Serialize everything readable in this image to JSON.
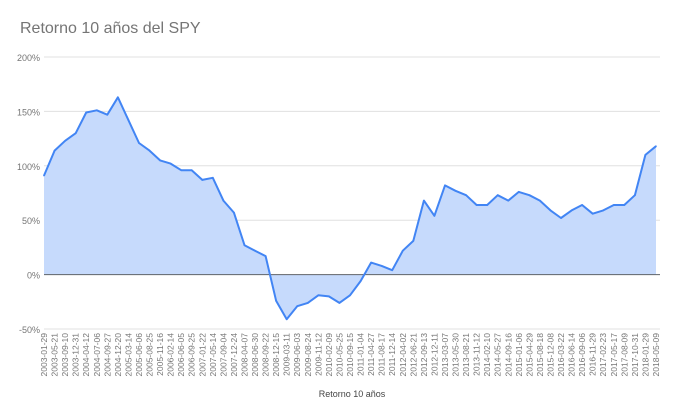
{
  "chart_data": {
    "type": "area",
    "title": "Retorno 10 años del SPY",
    "xlabel": "Retorno 10 años",
    "ylabel": "",
    "ylim": [
      -50,
      200
    ],
    "yticks": [
      200,
      150,
      100,
      50,
      0,
      -50
    ],
    "ytick_labels": [
      "200%",
      "150%",
      "100%",
      "50%",
      "0%",
      "-50%"
    ],
    "grid": true,
    "colors": {
      "line": "#4285f4",
      "fill": "#c6dafc",
      "grid": "#e0e0e0",
      "zero": "#5f6368"
    },
    "categories": [
      "2003-01-29",
      "2003-05-21",
      "2003-09-10",
      "2003-12-31",
      "2004-04-12",
      "2004-07-06",
      "2004-09-27",
      "2004-12-20",
      "2005-03-14",
      "2005-06-06",
      "2005-08-25",
      "2005-11-16",
      "2006-02-14",
      "2006-06-05",
      "2006-09-25",
      "2007-01-22",
      "2007-05-14",
      "2007-09-04",
      "2007-12-24",
      "2008-04-07",
      "2008-06-30",
      "2008-09-22",
      "2008-12-15",
      "2009-03-11",
      "2009-06-03",
      "2009-08-24",
      "2009-11-12",
      "2010-02-09",
      "2010-05-25",
      "2010-09-15",
      "2011-01-04",
      "2011-04-27",
      "2011-08-17",
      "2011-12-14",
      "2012-04-02",
      "2012-06-21",
      "2012-09-13",
      "2012-12-11",
      "2013-03-07",
      "2013-05-30",
      "2013-08-21",
      "2013-11-12",
      "2014-02-10",
      "2014-05-27",
      "2014-09-16",
      "2015-01-06",
      "2015-04-29",
      "2015-08-18",
      "2015-12-08",
      "2016-03-22",
      "2016-06-14",
      "2016-09-06",
      "2016-11-29",
      "2017-02-23",
      "2017-05-17",
      "2017-08-09",
      "2017-10-31",
      "2018-01-29",
      "2018-05-09"
    ],
    "series": [
      {
        "name": "Retorno 10 años",
        "values": [
          91,
          114,
          123,
          130,
          149,
          151,
          147,
          163,
          142,
          121,
          114,
          105,
          102,
          96,
          96,
          87,
          89,
          68,
          57,
          27,
          22,
          17,
          -24,
          -41,
          -29,
          -26,
          -19,
          -20,
          -26,
          -19,
          -6,
          11,
          8,
          4,
          22,
          31,
          68,
          54,
          82,
          77,
          73,
          64,
          64,
          73,
          68,
          76,
          73,
          68,
          59,
          52,
          59,
          64,
          56,
          59,
          64,
          64,
          73,
          110,
          118
        ]
      }
    ]
  }
}
